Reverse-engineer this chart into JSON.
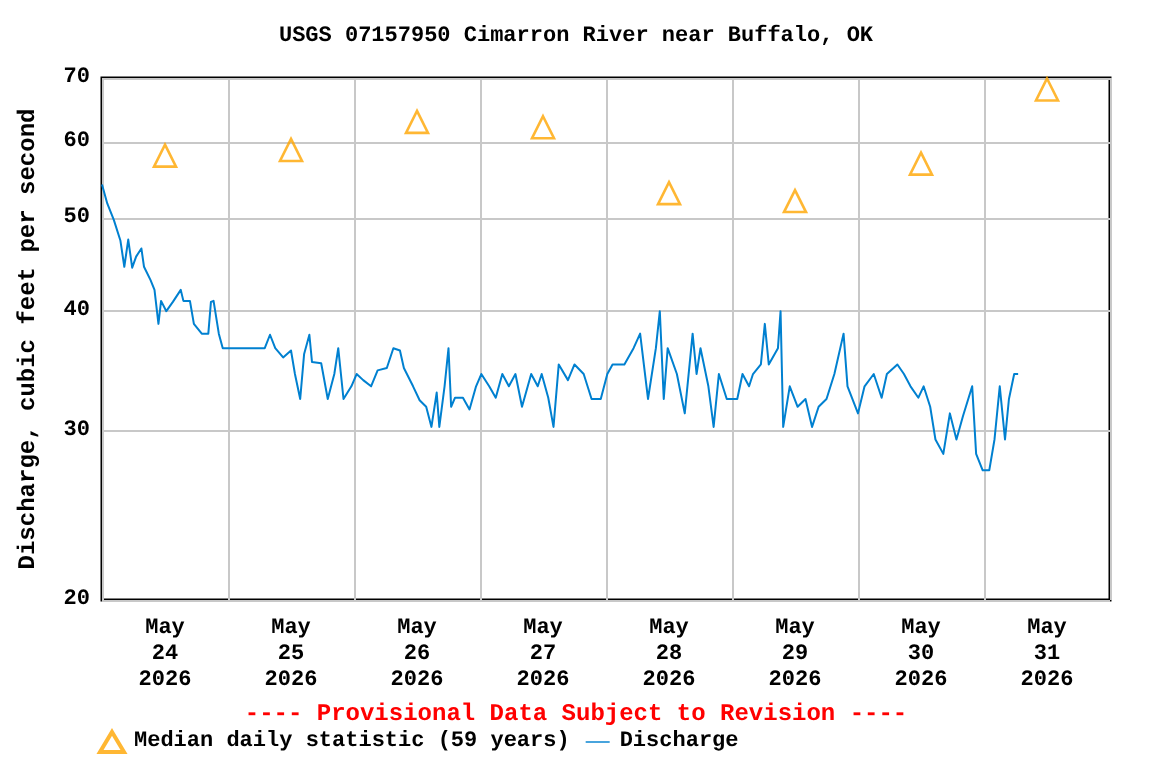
{
  "chart_data": {
    "type": "line",
    "title": "USGS 07157950 Cimarron River near Buffalo, OK",
    "ylabel": "Discharge, cubic feet per second",
    "annotations": [
      "---- Provisional Data Subject to Revision ----"
    ],
    "log": true,
    "grid": true,
    "legend": "bottom",
    "xlim": [
      "2026-05-24T00:00",
      "2026-06-01T00:00"
    ],
    "xticks": [
      {
        "value": "2026-05-24T00:00",
        "label": null
      },
      {
        "value": "2026-05-25T00:00",
        "label": null
      },
      {
        "value": "2026-05-26T00:00",
        "label": null
      },
      {
        "value": "2026-05-27T00:00",
        "label": null
      },
      {
        "value": "2026-05-28T00:00",
        "label": null
      },
      {
        "value": "2026-05-29T00:00",
        "label": null
      },
      {
        "value": "2026-05-30T00:00",
        "label": null
      },
      {
        "value": "2026-05-31T00:00",
        "label": null
      },
      {
        "value": "2026-06-01T00:00",
        "label": null
      },
      {
        "value": "2026-05-24T12:00",
        "label": "May\n24\n2026"
      },
      {
        "value": "2026-05-25T12:00",
        "label": "May\n25\n2026"
      },
      {
        "value": "2026-05-26T12:00",
        "label": "May\n26\n2026"
      },
      {
        "value": "2026-05-27T12:00",
        "label": "May\n27\n2026"
      },
      {
        "value": "2026-05-28T12:00",
        "label": "May\n28\n2026"
      },
      {
        "value": "2026-05-29T12:00",
        "label": "May\n29\n2026"
      },
      {
        "value": "2026-05-30T12:00",
        "label": "May\n30\n2026"
      },
      {
        "value": "2026-05-31T12:00",
        "label": "May\n31\n2026"
      }
    ],
    "ylim": [
      20,
      70
    ],
    "yticks": [
      20,
      30,
      40,
      50,
      60,
      70
    ],
    "series": [
      {
        "name": "Median daily statistic (59 years)",
        "type": "scatter",
        "marker": "triangle",
        "color": "#ffa500",
        "x": [
          "2026-05-24T12:00",
          "2026-05-25T12:00",
          "2026-05-26T12:00",
          "2026-05-27T12:00",
          "2026-05-28T12:00",
          "2026-05-29T12:00",
          "2026-05-30T12:00",
          "2026-05-31T12:00"
        ],
        "values": [
          58.1,
          58.9,
          63,
          62.2,
          53.1,
          52.1,
          57,
          68.1
        ]
      },
      {
        "name": "Discharge",
        "marker": "none",
        "color": "#0080d0",
        "x": [
          "2026-05-24T00:00",
          "2026-05-24T01:00",
          "2026-05-24T02:15",
          "2026-05-24T03:30",
          "2026-05-24T04:15",
          "2026-05-24T05:00",
          "2026-05-24T05:45",
          "2026-05-24T06:30",
          "2026-05-24T07:30",
          "2026-05-24T08:00",
          "2026-05-24T09:15",
          "2026-05-24T10:00",
          "2026-05-24T10:45",
          "2026-05-24T11:15",
          "2026-05-24T12:15",
          "2026-05-24T13:30",
          "2026-05-24T15:00",
          "2026-05-24T15:30",
          "2026-05-24T16:45",
          "2026-05-24T17:30",
          "2026-05-24T19:00",
          "2026-05-24T20:15",
          "2026-05-24T20:45",
          "2026-05-24T21:15",
          "2026-05-24T22:15",
          "2026-05-24T23:00",
          "2026-05-25T07:00",
          "2026-05-25T08:00",
          "2026-05-25T09:00",
          "2026-05-25T10:30",
          "2026-05-25T12:00",
          "2026-05-25T12:45",
          "2026-05-25T13:45",
          "2026-05-25T14:30",
          "2026-05-25T15:30",
          "2026-05-25T16:00",
          "2026-05-25T17:45",
          "2026-05-25T19:00",
          "2026-05-25T20:15",
          "2026-05-25T21:00",
          "2026-05-25T22:00",
          "2026-05-25T23:30",
          "2026-05-26T00:30",
          "2026-05-26T01:45",
          "2026-05-26T03:15",
          "2026-05-26T04:30",
          "2026-05-26T06:15",
          "2026-05-26T07:30",
          "2026-05-26T08:45",
          "2026-05-26T09:30",
          "2026-05-26T11:15",
          "2026-05-26T12:30",
          "2026-05-26T13:45",
          "2026-05-26T14:45",
          "2026-05-26T15:45",
          "2026-05-26T16:15",
          "2026-05-26T17:15",
          "2026-05-26T18:00",
          "2026-05-26T18:30",
          "2026-05-26T19:15",
          "2026-05-26T20:45",
          "2026-05-26T22:00",
          "2026-05-26T23:15",
          "2026-05-27T00:15",
          "2026-05-27T01:45",
          "2026-05-27T03:00",
          "2026-05-27T04:15",
          "2026-05-27T05:30",
          "2026-05-27T06:45",
          "2026-05-27T08:00",
          "2026-05-27T09:45",
          "2026-05-27T11:00",
          "2026-05-27T11:45",
          "2026-05-27T13:00",
          "2026-05-27T14:00",
          "2026-05-27T15:00",
          "2026-05-27T16:45",
          "2026-05-27T18:00",
          "2026-05-27T19:45",
          "2026-05-27T21:15",
          "2026-05-27T23:00",
          "2026-05-28T00:15",
          "2026-05-28T01:15",
          "2026-05-28T03:30",
          "2026-05-28T05:15",
          "2026-05-28T06:30",
          "2026-05-28T08:00",
          "2026-05-28T09:30",
          "2026-05-28T10:15",
          "2026-05-28T11:00",
          "2026-05-28T11:45",
          "2026-05-28T13:30",
          "2026-05-28T15:00",
          "2026-05-28T16:30",
          "2026-05-28T17:15",
          "2026-05-28T18:00",
          "2026-05-28T19:30",
          "2026-05-28T20:30",
          "2026-05-28T21:30",
          "2026-05-28T23:00",
          "2026-05-29T01:00",
          "2026-05-29T02:00",
          "2026-05-29T03:15",
          "2026-05-29T04:00",
          "2026-05-29T05:30",
          "2026-05-29T06:15",
          "2026-05-29T07:00",
          "2026-05-29T08:45",
          "2026-05-29T09:15",
          "2026-05-29T09:45",
          "2026-05-29T11:00",
          "2026-05-29T12:30",
          "2026-05-29T14:00",
          "2026-05-29T15:15",
          "2026-05-29T16:30",
          "2026-05-29T18:00",
          "2026-05-29T19:30",
          "2026-05-29T21:15",
          "2026-05-29T22:00",
          "2026-05-30T00:00",
          "2026-05-30T01:15",
          "2026-05-30T03:00",
          "2026-05-30T04:30",
          "2026-05-30T05:30",
          "2026-05-30T07:30",
          "2026-05-30T08:45",
          "2026-05-30T10:00",
          "2026-05-30T11:30",
          "2026-05-30T12:30",
          "2026-05-30T13:45",
          "2026-05-30T14:45",
          "2026-05-30T16:15",
          "2026-05-30T17:30",
          "2026-05-30T18:45",
          "2026-05-30T20:00",
          "2026-05-30T21:45",
          "2026-05-30T22:30",
          "2026-05-30T23:45",
          "2026-05-31T01:00",
          "2026-05-31T02:00",
          "2026-05-31T03:00",
          "2026-05-31T04:00",
          "2026-05-31T04:45",
          "2026-05-31T05:45",
          "2026-05-31T06:30"
        ],
        "values": [
          54.2,
          51.8,
          49.8,
          47.4,
          44.5,
          47.5,
          44.4,
          45.6,
          46.5,
          44.5,
          43.1,
          42.1,
          38.8,
          41.0,
          40.0,
          40.9,
          42.1,
          41.0,
          41.0,
          38.8,
          37.9,
          37.9,
          40.9,
          41.0,
          37.9,
          36.6,
          36.6,
          37.8,
          36.6,
          35.8,
          36.4,
          34.4,
          32.4,
          36.1,
          37.8,
          35.4,
          35.3,
          32.4,
          34.4,
          36.6,
          32.4,
          33.4,
          34.4,
          33.9,
          33.4,
          34.7,
          34.9,
          36.6,
          36.4,
          34.9,
          33.4,
          32.3,
          31.8,
          30.3,
          32.9,
          30.3,
          33.4,
          36.6,
          31.8,
          32.5,
          32.5,
          31.6,
          33.4,
          34.4,
          33.4,
          32.5,
          34.4,
          33.4,
          34.4,
          31.8,
          34.4,
          33.4,
          34.4,
          32.5,
          30.3,
          35.2,
          33.9,
          35.2,
          34.4,
          32.4,
          32.4,
          34.4,
          35.2,
          35.2,
          36.6,
          37.9,
          32.4,
          36.6,
          40.0,
          32.4,
          36.6,
          34.4,
          31.3,
          37.9,
          34.4,
          36.6,
          33.4,
          30.3,
          34.4,
          32.4,
          32.4,
          34.4,
          33.4,
          34.4,
          35.2,
          38.8,
          35.2,
          36.6,
          40.0,
          30.3,
          33.4,
          31.8,
          32.4,
          30.3,
          31.8,
          32.4,
          34.4,
          37.9,
          33.4,
          31.3,
          33.4,
          34.4,
          32.5,
          34.4,
          35.2,
          34.4,
          33.4,
          32.5,
          33.4,
          31.8,
          29.4,
          28.4,
          31.3,
          29.4,
          31.1,
          33.4,
          28.4,
          27.3,
          27.3,
          29.4,
          33.4,
          29.4,
          32.4,
          34.4,
          34.4
        ]
      }
    ]
  }
}
